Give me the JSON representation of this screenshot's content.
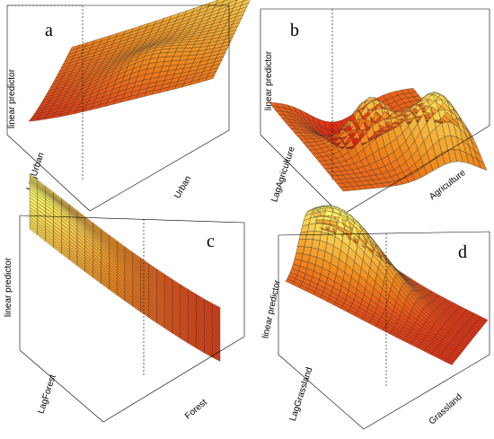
{
  "chart_data": [
    {
      "type": "surface",
      "panel_label": "a",
      "xlabel": "Urban",
      "ylabel": "LagUrban",
      "zlabel": "linear predictor",
      "shape": "rising toward back-right corner with a ridge",
      "colormap": "heat"
    },
    {
      "type": "surface",
      "panel_label": "b",
      "xlabel": "Agriculture",
      "ylabel": "LagAgriculture",
      "zlabel": "linear predictor",
      "shape": "two peaks toward the back with a deep valley in front",
      "colormap": "heat"
    },
    {
      "type": "surface",
      "panel_label": "c",
      "xlabel": "Forest",
      "ylabel": "LagForest",
      "zlabel": "linear predictor",
      "shape": "high at back-left decreasing to front-right corner",
      "colormap": "heat"
    },
    {
      "type": "surface",
      "panel_label": "d",
      "xlabel": "Grassland",
      "ylabel": "LagGrassland",
      "zlabel": "linear predictor",
      "shape": "peak at back-left, decreasing toward front-right corner",
      "colormap": "heat"
    }
  ],
  "colors": {
    "low": "#dd1a10",
    "mid": "#f08a1c",
    "high": "#fbf46a",
    "mesh": "#333333"
  }
}
